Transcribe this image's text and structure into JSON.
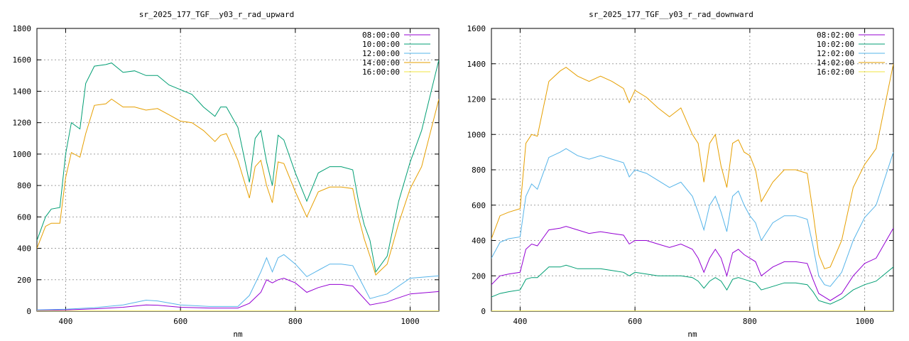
{
  "chart_data": [
    {
      "type": "line",
      "title": "sr_2025_177_TGF__y03_r_rad_upward",
      "xlabel": "nm",
      "ylabel": "",
      "xlim": [
        350,
        1050
      ],
      "ylim": [
        0,
        1800
      ],
      "xticks": [
        400,
        600,
        800,
        1000
      ],
      "yticks": [
        0,
        200,
        400,
        600,
        800,
        1000,
        1200,
        1400,
        1600,
        1800
      ],
      "grid": true,
      "legend_position": "top-right",
      "series": [
        {
          "name": "08:00:00",
          "color": "#9400d3",
          "x": [
            350,
            400,
            450,
            500,
            540,
            560,
            600,
            650,
            700,
            720,
            740,
            750,
            760,
            770,
            780,
            800,
            820,
            840,
            860,
            880,
            900,
            910,
            930,
            960,
            1000,
            1050
          ],
          "y": [
            5,
            8,
            15,
            25,
            40,
            38,
            25,
            20,
            20,
            50,
            120,
            200,
            180,
            200,
            210,
            180,
            120,
            150,
            170,
            170,
            160,
            120,
            40,
            60,
            110,
            125
          ]
        },
        {
          "name": "10:00:00",
          "color": "#009e73",
          "x": [
            350,
            365,
            375,
            390,
            400,
            410,
            425,
            435,
            450,
            470,
            480,
            500,
            520,
            540,
            560,
            580,
            600,
            620,
            640,
            660,
            670,
            680,
            700,
            720,
            730,
            740,
            750,
            760,
            770,
            780,
            800,
            820,
            840,
            860,
            880,
            900,
            910,
            920,
            930,
            940,
            960,
            980,
            1000,
            1020,
            1050
          ],
          "y": [
            450,
            600,
            650,
            660,
            1000,
            1200,
            1160,
            1450,
            1560,
            1570,
            1580,
            1520,
            1530,
            1500,
            1500,
            1440,
            1410,
            1380,
            1300,
            1240,
            1300,
            1300,
            1170,
            820,
            1100,
            1150,
            950,
            800,
            1120,
            1090,
            880,
            700,
            880,
            920,
            920,
            900,
            700,
            550,
            450,
            250,
            350,
            700,
            950,
            1150,
            1600
          ]
        },
        {
          "name": "12:00:00",
          "color": "#56b4e9",
          "x": [
            350,
            400,
            450,
            500,
            540,
            560,
            600,
            650,
            700,
            720,
            740,
            750,
            760,
            770,
            780,
            800,
            820,
            840,
            860,
            880,
            900,
            910,
            930,
            960,
            1000,
            1050
          ],
          "y": [
            8,
            12,
            22,
            40,
            70,
            65,
            40,
            30,
            30,
            100,
            250,
            340,
            250,
            340,
            360,
            300,
            220,
            260,
            300,
            300,
            290,
            220,
            80,
            110,
            210,
            225
          ]
        },
        {
          "name": "14:00:00",
          "color": "#e69f00",
          "x": [
            350,
            365,
            375,
            390,
            400,
            410,
            425,
            435,
            450,
            470,
            480,
            500,
            520,
            540,
            560,
            580,
            600,
            620,
            640,
            660,
            670,
            680,
            700,
            720,
            730,
            740,
            750,
            760,
            770,
            780,
            800,
            820,
            840,
            860,
            880,
            900,
            910,
            920,
            930,
            940,
            960,
            980,
            1000,
            1020,
            1050
          ],
          "y": [
            400,
            540,
            560,
            560,
            850,
            1010,
            980,
            1130,
            1310,
            1320,
            1350,
            1300,
            1300,
            1280,
            1290,
            1250,
            1210,
            1200,
            1150,
            1080,
            1120,
            1130,
            960,
            720,
            920,
            960,
            800,
            690,
            950,
            940,
            760,
            600,
            760,
            790,
            790,
            780,
            600,
            460,
            350,
            230,
            300,
            560,
            780,
            920,
            1350
          ]
        },
        {
          "name": "16:00:00",
          "color": "#f0e442",
          "x": [
            350,
            400,
            450,
            500,
            550,
            600,
            650,
            700,
            750,
            800,
            850,
            900,
            950,
            1000,
            1050
          ],
          "y": [
            1,
            1,
            1,
            1,
            1,
            1,
            1,
            1,
            1,
            1,
            1,
            1,
            1,
            1,
            1
          ]
        }
      ]
    },
    {
      "type": "line",
      "title": "sr_2025_177_TGF__y03_r_rad_downward",
      "xlabel": "nm",
      "ylabel": "",
      "xlim": [
        350,
        1050
      ],
      "ylim": [
        0,
        1600
      ],
      "xticks": [
        400,
        600,
        800,
        1000
      ],
      "yticks": [
        0,
        200,
        400,
        600,
        800,
        1000,
        1200,
        1400,
        1600
      ],
      "grid": true,
      "legend_position": "top-right",
      "series": [
        {
          "name": "08:02:00",
          "color": "#9400d3",
          "x": [
            350,
            365,
            380,
            400,
            410,
            420,
            430,
            450,
            470,
            480,
            500,
            520,
            540,
            560,
            580,
            590,
            600,
            620,
            640,
            660,
            680,
            700,
            710,
            720,
            730,
            740,
            750,
            760,
            770,
            780,
            790,
            800,
            810,
            820,
            840,
            860,
            880,
            900,
            910,
            920,
            930,
            940,
            960,
            980,
            1000,
            1020,
            1050
          ],
          "y": [
            150,
            200,
            210,
            220,
            350,
            380,
            370,
            460,
            470,
            480,
            460,
            440,
            450,
            440,
            430,
            380,
            400,
            400,
            380,
            360,
            380,
            350,
            300,
            220,
            300,
            350,
            300,
            200,
            330,
            350,
            320,
            300,
            280,
            200,
            250,
            280,
            280,
            270,
            180,
            100,
            80,
            60,
            100,
            200,
            270,
            300,
            470
          ]
        },
        {
          "name": "10:02:00",
          "color": "#009e73",
          "x": [
            350,
            365,
            380,
            400,
            410,
            420,
            430,
            450,
            470,
            480,
            500,
            520,
            540,
            560,
            580,
            590,
            600,
            620,
            640,
            660,
            680,
            700,
            710,
            720,
            730,
            740,
            750,
            760,
            770,
            780,
            790,
            800,
            810,
            820,
            840,
            860,
            880,
            900,
            910,
            920,
            930,
            940,
            960,
            980,
            1000,
            1020,
            1050
          ],
          "y": [
            80,
            100,
            110,
            120,
            180,
            190,
            190,
            250,
            250,
            260,
            240,
            240,
            240,
            230,
            220,
            200,
            220,
            210,
            200,
            200,
            200,
            190,
            170,
            130,
            170,
            190,
            170,
            120,
            180,
            190,
            180,
            170,
            160,
            120,
            140,
            160,
            160,
            150,
            110,
            60,
            50,
            40,
            70,
            120,
            150,
            170,
            250
          ]
        },
        {
          "name": "12:02:00",
          "color": "#56b4e9",
          "x": [
            350,
            365,
            380,
            400,
            410,
            420,
            430,
            450,
            470,
            480,
            500,
            520,
            540,
            560,
            580,
            590,
            600,
            620,
            640,
            660,
            680,
            700,
            710,
            720,
            730,
            740,
            750,
            760,
            770,
            780,
            790,
            800,
            810,
            820,
            840,
            860,
            880,
            900,
            910,
            920,
            930,
            940,
            960,
            980,
            1000,
            1020,
            1050
          ],
          "y": [
            300,
            390,
            410,
            420,
            650,
            720,
            690,
            870,
            900,
            920,
            880,
            860,
            880,
            860,
            840,
            760,
            800,
            780,
            740,
            700,
            730,
            650,
            560,
            460,
            600,
            650,
            560,
            450,
            650,
            680,
            600,
            540,
            500,
            400,
            500,
            540,
            540,
            520,
            370,
            200,
            150,
            140,
            220,
            400,
            530,
            600,
            900
          ]
        },
        {
          "name": "14:02:00",
          "color": "#e69f00",
          "x": [
            350,
            365,
            380,
            400,
            410,
            420,
            430,
            450,
            470,
            480,
            500,
            520,
            540,
            560,
            580,
            590,
            600,
            620,
            640,
            660,
            680,
            700,
            710,
            720,
            730,
            740,
            750,
            760,
            770,
            780,
            790,
            800,
            810,
            820,
            840,
            860,
            880,
            900,
            910,
            920,
            930,
            940,
            960,
            980,
            1000,
            1020,
            1050
          ],
          "y": [
            410,
            540,
            560,
            580,
            950,
            1000,
            990,
            1300,
            1360,
            1380,
            1330,
            1300,
            1330,
            1300,
            1260,
            1180,
            1250,
            1210,
            1150,
            1100,
            1150,
            1000,
            950,
            730,
            950,
            1000,
            820,
            700,
            950,
            970,
            900,
            880,
            800,
            620,
            730,
            800,
            800,
            780,
            560,
            320,
            240,
            250,
            400,
            700,
            830,
            920,
            1400
          ]
        },
        {
          "name": "16:02:00",
          "color": "#f0e442",
          "x": [
            350,
            400,
            450,
            500,
            550,
            600,
            650,
            700,
            750,
            800,
            850,
            900,
            950,
            1000,
            1050
          ],
          "y": [
            1,
            1,
            1,
            1,
            1,
            1,
            1,
            1,
            1,
            1,
            1,
            1,
            1,
            1,
            1
          ]
        }
      ]
    }
  ]
}
